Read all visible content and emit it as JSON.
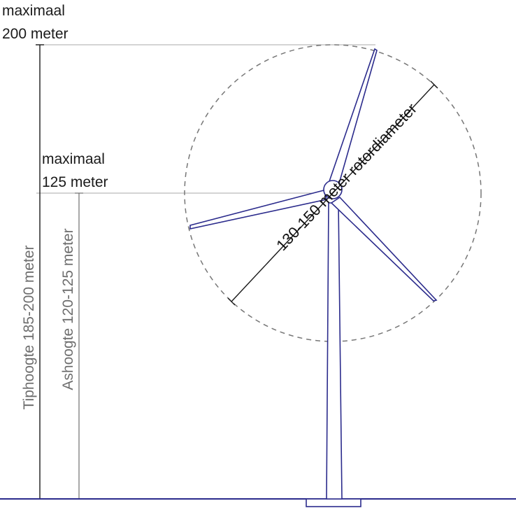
{
  "labels": {
    "tip_max_line1": "maximaal",
    "tip_max_line2": "200 meter",
    "hub_max_line1": "maximaal",
    "hub_max_line2": "125 meter",
    "tip_height": "Tiphoogte 185-200 meter",
    "hub_height": "Ashoogte 120-125 meter",
    "rotor_diameter": "130-150 meter rotordiameter"
  },
  "colors": {
    "turbine_stroke": "#2b2b8c",
    "dimension_dark": "#1a1a1a",
    "dimension_grey": "#6e6e6e",
    "guide_line": "#a8a8a8",
    "rotor_circle": "#777777"
  }
}
